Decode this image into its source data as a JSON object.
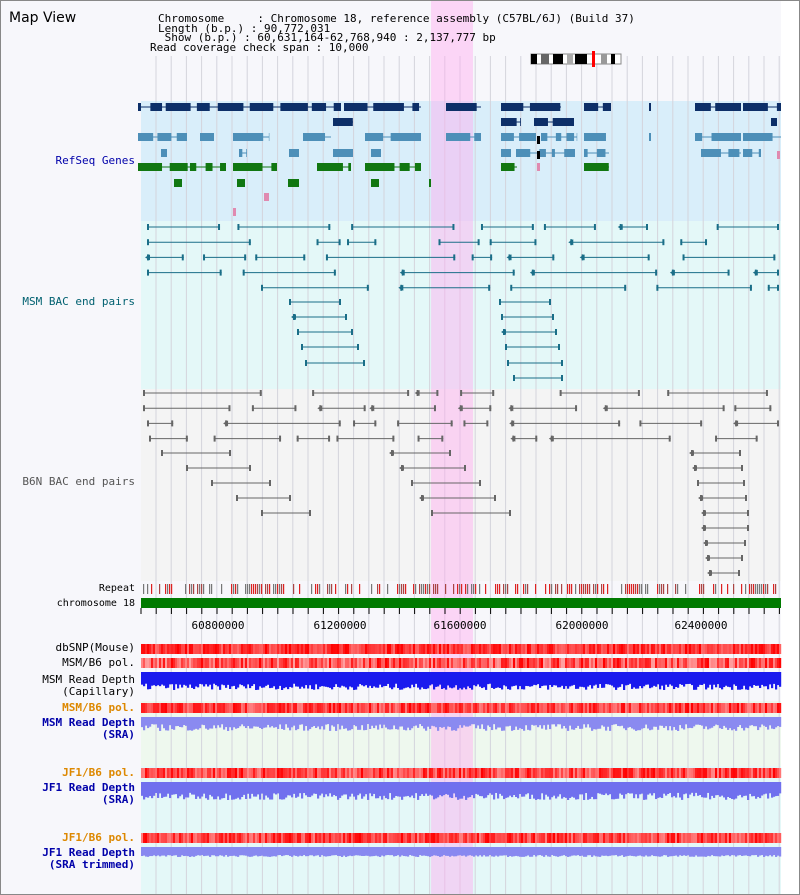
{
  "view": {
    "title": "Map View",
    "info_lines": [
      "Chromosome     : Chromosome 18, reference assembly (C57BL/6J) (Build 37)",
      "Length (b.p.) : 90,772,031",
      " Show (b.p.) : 60,631,164-62,768,940 : 2,137,777 bp",
      "Read coverage check span : 10,000"
    ]
  },
  "tracks": {
    "refseq": {
      "label": "RefSeq Genes",
      "color": "#0000aa"
    },
    "msm_bac": {
      "label": "MSM BAC end pairs",
      "color": "#006070"
    },
    "b6n_bac": {
      "label": "B6N BAC end pairs",
      "color": "#555555"
    },
    "repeat": {
      "label": "Repeat"
    },
    "chrom": {
      "label": "chromosome 18"
    },
    "dbsnp": {
      "label": "dbSNP(Mouse)"
    },
    "msm_pol1": {
      "label": "MSM/B6 pol."
    },
    "msm_depth_cap": {
      "label1": "MSM Read Depth",
      "label2": "(Capillary)"
    },
    "msm_pol2": {
      "label": "MSM/B6 pol.",
      "color": "#dd8800"
    },
    "msm_depth_sra": {
      "label1": "MSM Read Depth",
      "label2": "(SRA)",
      "color": "#0000aa"
    },
    "jf1_pol1": {
      "label": "JF1/B6 pol.",
      "color": "#dd8800"
    },
    "jf1_depth_sra": {
      "label1": "JF1 Read Depth",
      "label2": "(SRA)",
      "color": "#0000aa"
    },
    "jf1_pol2": {
      "label": "JF1/B6 pol.",
      "color": "#dd8800"
    },
    "jf1_depth_trim": {
      "label1": "JF1 Read Depth",
      "label2": "(SRA trimmed)",
      "color": "#0000aa"
    }
  },
  "axis": {
    "range_bp": [
      60631164,
      62768940
    ],
    "ticks": [
      "60800000",
      "61200000",
      "61600000",
      "62000000",
      "62400000"
    ]
  },
  "highlight": {
    "start_bp": 61600000,
    "end_bp": 61740000
  }
}
